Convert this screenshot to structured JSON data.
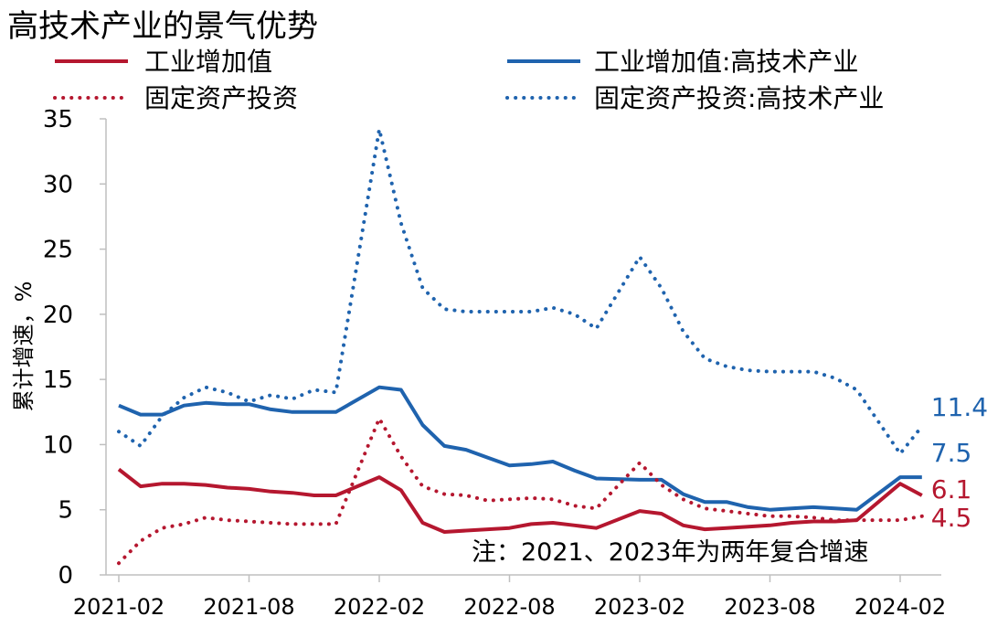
{
  "chart_data": {
    "type": "line",
    "title": "高技术产业的景气优势",
    "xlabel": "",
    "ylabel": "累计增速，%",
    "ylim": [
      0,
      35
    ],
    "yticks": [
      "0",
      "5",
      "10",
      "15",
      "20",
      "25",
      "30",
      "35"
    ],
    "xticks": [
      "2021-02",
      "2021-08",
      "2022-02",
      "2022-08",
      "2023-02",
      "2023-08",
      "2024-02"
    ],
    "note": "注：2021、2023年为两年复合增速",
    "x": [
      "2021-02",
      "2021-03",
      "2021-04",
      "2021-05",
      "2021-06",
      "2021-07",
      "2021-08",
      "2021-09",
      "2021-10",
      "2021-11",
      "2021-12",
      "2022-02",
      "2022-03",
      "2022-04",
      "2022-05",
      "2022-06",
      "2022-07",
      "2022-08",
      "2022-09",
      "2022-10",
      "2022-11",
      "2022-12",
      "2023-02",
      "2023-03",
      "2023-04",
      "2023-05",
      "2023-06",
      "2023-07",
      "2023-08",
      "2023-09",
      "2023-10",
      "2023-11",
      "2023-12",
      "2024-02",
      "2024-03"
    ],
    "series": [
      {
        "name": "工业增加值",
        "color": "#b5172f",
        "style": "solid",
        "values": [
          8.1,
          6.8,
          7.0,
          7.0,
          6.9,
          6.7,
          6.6,
          6.4,
          6.3,
          6.1,
          6.1,
          7.5,
          6.5,
          4.0,
          3.3,
          3.4,
          3.5,
          3.6,
          3.9,
          4.0,
          3.8,
          3.6,
          4.9,
          4.7,
          3.8,
          3.5,
          3.6,
          3.7,
          3.8,
          4.0,
          4.1,
          4.1,
          4.2,
          7.0,
          6.1
        ],
        "end_label": "6.1"
      },
      {
        "name": "工业增加值:高技术产业",
        "color": "#1f63ae",
        "style": "solid",
        "values": [
          13.0,
          12.3,
          12.3,
          13.0,
          13.2,
          13.1,
          13.1,
          12.7,
          12.5,
          12.5,
          12.5,
          14.4,
          14.2,
          11.5,
          9.9,
          9.6,
          9.0,
          8.4,
          8.5,
          8.7,
          8.0,
          7.4,
          7.3,
          7.3,
          6.2,
          5.6,
          5.6,
          5.2,
          5.0,
          5.1,
          5.2,
          5.1,
          5.0,
          7.5,
          7.5
        ],
        "end_label": "7.5"
      },
      {
        "name": "固定资产投资",
        "color": "#b5172f",
        "style": "dotted",
        "values": [
          0.9,
          2.6,
          3.6,
          3.9,
          4.4,
          4.2,
          4.1,
          4.0,
          3.9,
          3.9,
          3.9,
          12.0,
          9.1,
          6.8,
          6.2,
          6.1,
          5.7,
          5.8,
          5.9,
          5.8,
          5.3,
          5.1,
          8.6,
          6.9,
          5.8,
          5.1,
          4.9,
          4.7,
          4.5,
          4.5,
          4.4,
          4.2,
          4.2,
          4.2,
          4.5
        ],
        "end_label": "4.5"
      },
      {
        "name": "固定资产投资:高技术产业",
        "color": "#1f63ae",
        "style": "dotted",
        "values": [
          11.0,
          9.9,
          12.2,
          13.6,
          14.4,
          14.0,
          13.3,
          13.8,
          13.5,
          14.2,
          14.0,
          34.2,
          27.0,
          22.0,
          20.4,
          20.2,
          20.2,
          20.2,
          20.2,
          20.5,
          20.0,
          18.9,
          24.4,
          22.0,
          18.7,
          16.6,
          16.0,
          15.7,
          15.6,
          15.6,
          15.6,
          15.1,
          14.2,
          9.3,
          11.4
        ],
        "end_label": "11.4"
      }
    ]
  }
}
